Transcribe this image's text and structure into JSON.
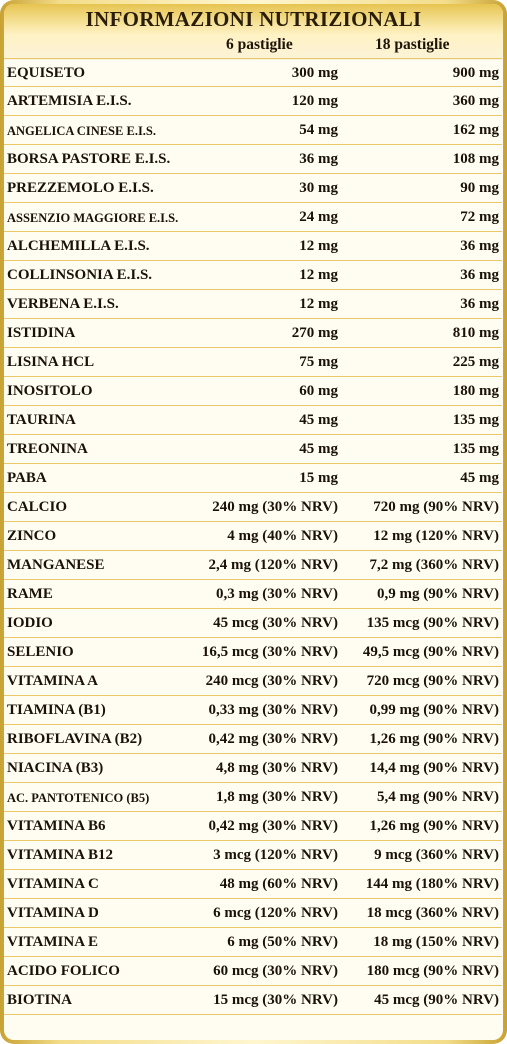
{
  "title": "INFORMAZIONI NUTRIZIONALI",
  "columns": [
    "6 pastiglie",
    "18 pastiglie"
  ],
  "rows": [
    {
      "name": "EQUISETO",
      "v6": "300 mg",
      "v18": "900 mg"
    },
    {
      "name": "ARTEMISIA E.I.S.",
      "v6": "120 mg",
      "v18": "360 mg"
    },
    {
      "name": "ANGELICA CINESE E.I.S.",
      "v6": "54 mg",
      "v18": "162 mg"
    },
    {
      "name": "BORSA PASTORE E.I.S.",
      "v6": "36 mg",
      "v18": "108 mg"
    },
    {
      "name": "PREZZEMOLO E.I.S.",
      "v6": "30 mg",
      "v18": "90 mg"
    },
    {
      "name": "ASSENZIO MAGGIORE E.I.S.",
      "v6": "24 mg",
      "v18": "72 mg"
    },
    {
      "name": "ALCHEMILLA E.I.S.",
      "v6": "12 mg",
      "v18": "36 mg"
    },
    {
      "name": "COLLINSONIA E.I.S.",
      "v6": "12 mg",
      "v18": "36 mg"
    },
    {
      "name": "VERBENA E.I.S.",
      "v6": "12 mg",
      "v18": "36 mg"
    },
    {
      "name": "ISTIDINA",
      "v6": "270 mg",
      "v18": "810 mg"
    },
    {
      "name": "LISINA HCL",
      "v6": "75 mg",
      "v18": "225 mg"
    },
    {
      "name": "INOSITOLO",
      "v6": "60 mg",
      "v18": "180 mg"
    },
    {
      "name": "TAURINA",
      "v6": "45 mg",
      "v18": "135 mg"
    },
    {
      "name": "TREONINA",
      "v6": "45 mg",
      "v18": "135 mg"
    },
    {
      "name": "PABA",
      "v6": "15 mg",
      "v18": "45 mg"
    },
    {
      "name": "CALCIO",
      "v6": "240 mg (30% NRV)",
      "v18": "720 mg (90% NRV)"
    },
    {
      "name": "ZINCO",
      "v6": "4 mg (40% NRV)",
      "v18": "12 mg (120% NRV)"
    },
    {
      "name": "MANGANESE",
      "v6": "2,4 mg (120% NRV)",
      "v18": "7,2 mg (360% NRV)"
    },
    {
      "name": "RAME",
      "v6": "0,3 mg (30% NRV)",
      "v18": "0,9 mg (90% NRV)"
    },
    {
      "name": "IODIO",
      "v6": "45 mcg (30% NRV)",
      "v18": "135 mcg (90% NRV)"
    },
    {
      "name": "SELENIO",
      "v6": "16,5 mcg (30% NRV)",
      "v18": "49,5 mcg (90% NRV)"
    },
    {
      "name": "VITAMINA A",
      "v6": "240 mcg (30% NRV)",
      "v18": "720 mcg (90% NRV)"
    },
    {
      "name": "TIAMINA (B1)",
      "v6": "0,33 mg (30% NRV)",
      "v18": "0,99 mg (90% NRV)"
    },
    {
      "name": "RIBOFLAVINA (B2)",
      "v6": "0,42 mg (30% NRV)",
      "v18": "1,26 mg (90% NRV)"
    },
    {
      "name": "NIACINA (B3)",
      "v6": "4,8 mg (30% NRV)",
      "v18": "14,4 mg (90% NRV)"
    },
    {
      "name": "AC. PANTOTENICO (B5)",
      "v6": "1,8 mg (30% NRV)",
      "v18": "5,4 mg (90% NRV)"
    },
    {
      "name": "VITAMINA B6",
      "v6": "0,42 mg (30% NRV)",
      "v18": "1,26 mg (90% NRV)"
    },
    {
      "name": "VITAMINA B12",
      "v6": "3 mcg (120% NRV)",
      "v18": "9 mcg (360% NRV)"
    },
    {
      "name": "VITAMINA C",
      "v6": "48 mg (60% NRV)",
      "v18": "144 mg (180% NRV)"
    },
    {
      "name": "VITAMINA D",
      "v6": "6 mcg (120% NRV)",
      "v18": "18 mcg (360% NRV)"
    },
    {
      "name": "VITAMINA E",
      "v6": "6 mg (50% NRV)",
      "v18": "18 mg (150% NRV)"
    },
    {
      "name": "ACIDO FOLICO",
      "v6": "60  mcg (30% NRV)",
      "v18": "180 mcg (90% NRV)"
    },
    {
      "name": "BIOTINA",
      "v6": "15 mcg (30% NRV)",
      "v18": "45 mcg (90% NRV)"
    }
  ],
  "colors": {
    "gold": "#c9a233",
    "rule": "#e9c76a",
    "text": "#1a1208",
    "background": "#fffdf2"
  }
}
